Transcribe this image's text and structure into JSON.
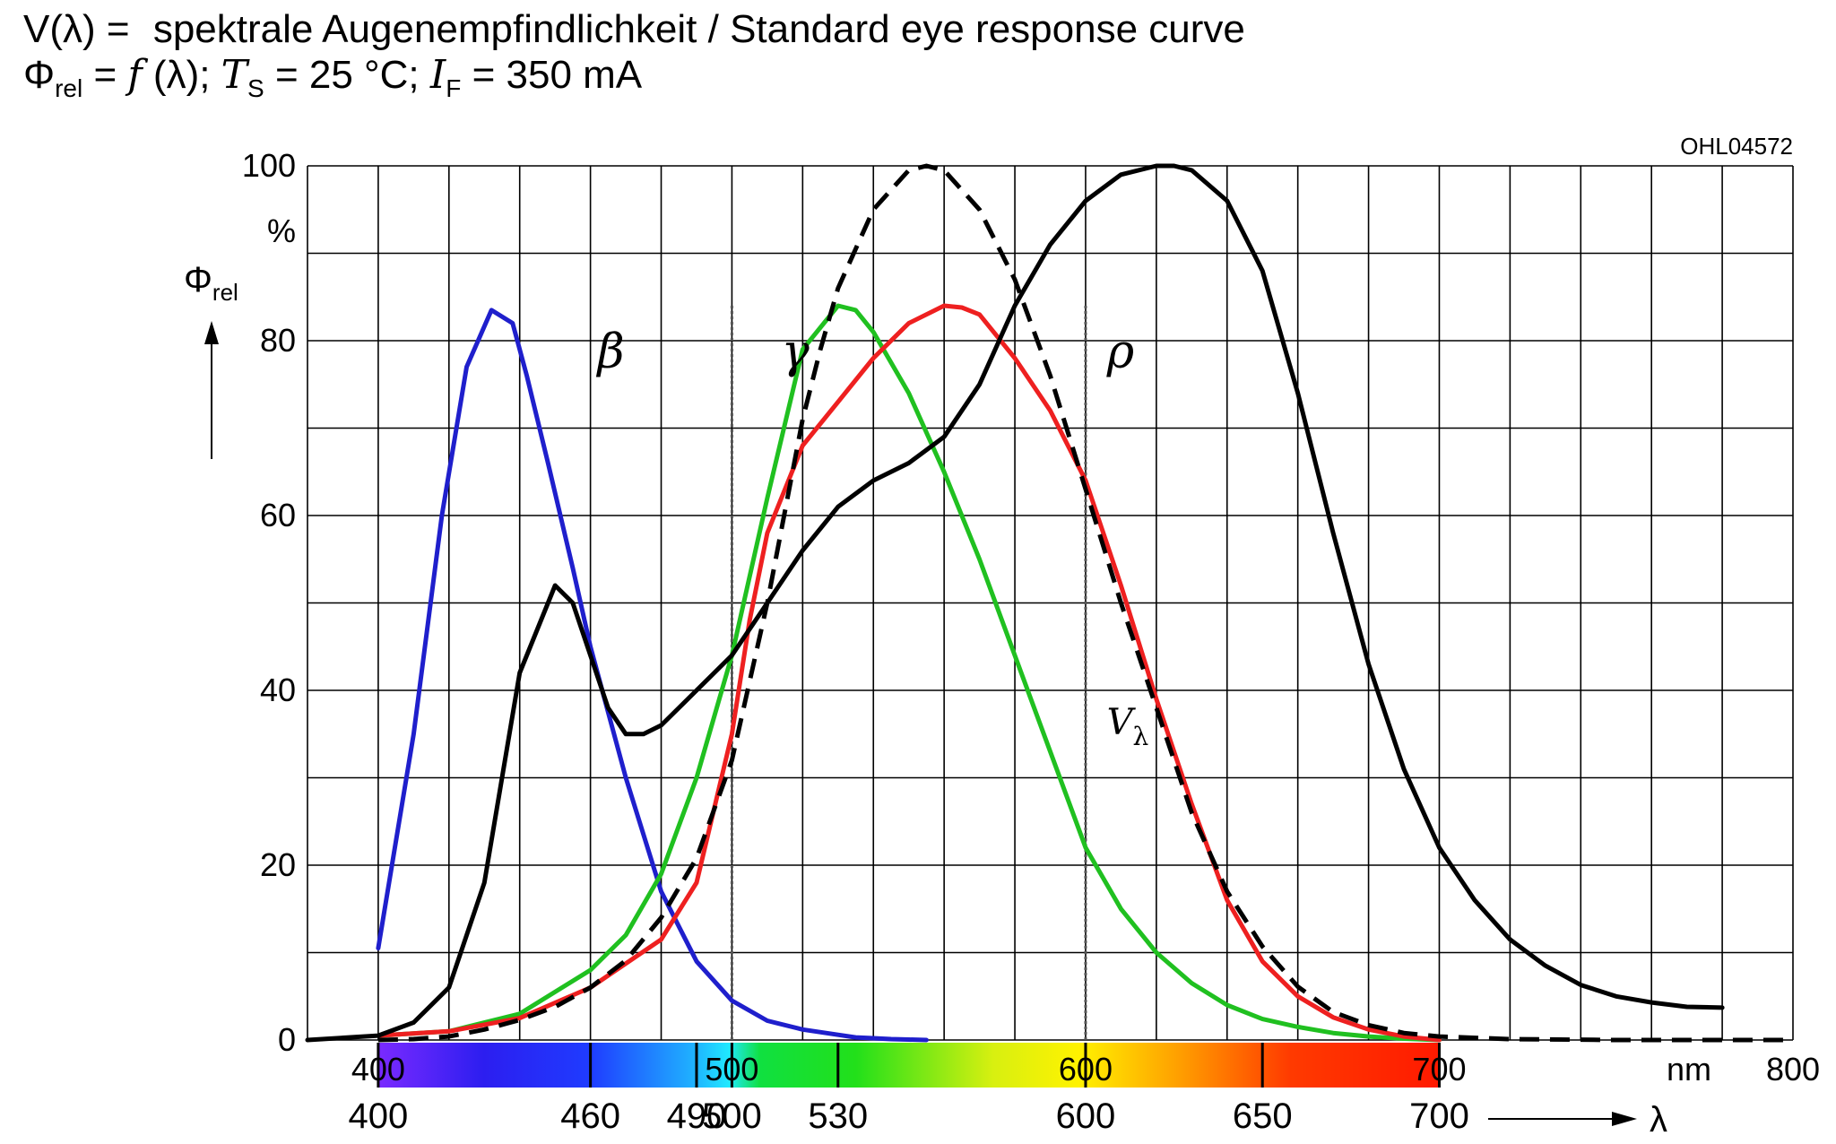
{
  "title": {
    "line1_left": "V(λ) =",
    "line1_right": "spektrale Augenempfindlichkeit / Standard eye response curve",
    "line2": {
      "phi": "Φ",
      "phi_sub": "rel",
      "eq": " = ",
      "f": "f",
      "args": " (λ); ",
      "t": "T",
      "t_sub": "S",
      "t_val": " = 25 °C; ",
      "i": "I",
      "i_sub": "F",
      "i_val": " = 350 mA"
    }
  },
  "chart_data": {
    "type": "line",
    "doc_code": "OHL04572",
    "xlim": [
      380,
      800
    ],
    "ylim": [
      0,
      100
    ],
    "x_ticks": [
      400,
      500,
      600,
      700,
      800
    ],
    "x_unit": "nm",
    "y_ticks": [
      0,
      20,
      40,
      60,
      80,
      100
    ],
    "y_unit": "%",
    "ylabel": {
      "symbol": "Φ",
      "sub": "rel"
    },
    "xlabel": "λ",
    "grid": true,
    "spectrum_ticks": [
      400,
      460,
      490,
      500,
      530,
      600,
      650,
      700
    ],
    "spectrum_bounds": [
      400,
      700
    ],
    "vertical_dotted_lines": [
      500,
      600
    ],
    "curve_labels": [
      {
        "text": "β",
        "x": 462,
        "y": 77
      },
      {
        "text": "γ",
        "x": 514,
        "y": 77
      },
      {
        "text": "ρ",
        "x": 606,
        "y": 77
      },
      {
        "text": "V",
        "sub": "λ",
        "x": 606,
        "y": 35
      }
    ],
    "series": [
      {
        "color": "#1f1fcc",
        "dash": false,
        "x": [
          400,
          410,
          418,
          425,
          432,
          438,
          442,
          448,
          455,
          460,
          470,
          480,
          490,
          500,
          510,
          520,
          530,
          535,
          540,
          545,
          550,
          555
        ],
        "y": [
          10.5,
          35,
          60,
          77,
          83.5,
          82,
          76,
          66,
          54,
          45,
          30,
          17,
          9,
          4.5,
          2.2,
          1.2,
          0.6,
          0.3,
          0.2,
          0.1,
          0.05,
          0
        ]
      },
      {
        "color": "#20c020",
        "dash": false,
        "x": [
          400,
          420,
          440,
          460,
          470,
          480,
          490,
          500,
          510,
          520,
          530,
          535,
          540,
          550,
          560,
          570,
          580,
          590,
          600,
          610,
          620,
          630,
          640,
          650,
          660,
          670,
          680,
          690,
          700
        ],
        "y": [
          0.5,
          1,
          3,
          8,
          12,
          19,
          30,
          44,
          62,
          79,
          84,
          83.5,
          81,
          74,
          65,
          55,
          44,
          33,
          22,
          15,
          10,
          6.5,
          4,
          2.4,
          1.5,
          0.8,
          0.4,
          0.15,
          0
        ]
      },
      {
        "color": "#ee2020",
        "dash": false,
        "x": [
          400,
          420,
          440,
          460,
          480,
          490,
          500,
          505,
          510,
          520,
          530,
          540,
          550,
          560,
          565,
          570,
          580,
          590,
          600,
          610,
          620,
          630,
          640,
          650,
          660,
          670,
          680,
          690,
          700
        ],
        "y": [
          0.5,
          1,
          2.5,
          6,
          11.5,
          18,
          35,
          48,
          58,
          68,
          73,
          78,
          82,
          84,
          83.8,
          83,
          78,
          72,
          64,
          52,
          39,
          27,
          16,
          9,
          5,
          2.6,
          1.2,
          0.4,
          0
        ]
      },
      {
        "color": "#000000",
        "dash": false,
        "x": [
          380,
          400,
          410,
          420,
          430,
          440,
          450,
          455,
          460,
          465,
          470,
          475,
          480,
          485,
          490,
          495,
          500,
          510,
          520,
          530,
          540,
          550,
          560,
          570,
          580,
          590,
          600,
          610,
          620,
          625,
          630,
          640,
          650,
          660,
          670,
          680,
          690,
          700,
          710,
          720,
          730,
          740,
          750,
          760,
          770,
          780
        ],
        "y": [
          0,
          0.5,
          2,
          6,
          18,
          42,
          52,
          50,
          44,
          38,
          35,
          35,
          36,
          38,
          40,
          42,
          44,
          50,
          56,
          61,
          64,
          66,
          69,
          75,
          84,
          91,
          96,
          99,
          100,
          100,
          99.5,
          96,
          88,
          74,
          58,
          43,
          31,
          22,
          16,
          11.5,
          8.5,
          6.3,
          5,
          4.3,
          3.8,
          3.7
        ]
      },
      {
        "color": "#000000",
        "dash": true,
        "x": [
          400,
          410,
          420,
          430,
          440,
          450,
          460,
          470,
          480,
          490,
          500,
          510,
          520,
          525,
          530,
          540,
          550,
          555,
          560,
          570,
          580,
          590,
          600,
          610,
          620,
          630,
          640,
          650,
          660,
          670,
          680,
          690,
          700,
          720,
          750,
          780,
          800
        ],
        "y": [
          0,
          0.1,
          0.4,
          1.2,
          2.3,
          3.8,
          6,
          9.1,
          14,
          20.8,
          32,
          50,
          71,
          79,
          86,
          95,
          99.5,
          100,
          99.5,
          95,
          87,
          76,
          63,
          50,
          38,
          26,
          17,
          10.7,
          6.1,
          3.2,
          1.7,
          0.8,
          0.4,
          0.1,
          0,
          0,
          0
        ]
      }
    ]
  }
}
